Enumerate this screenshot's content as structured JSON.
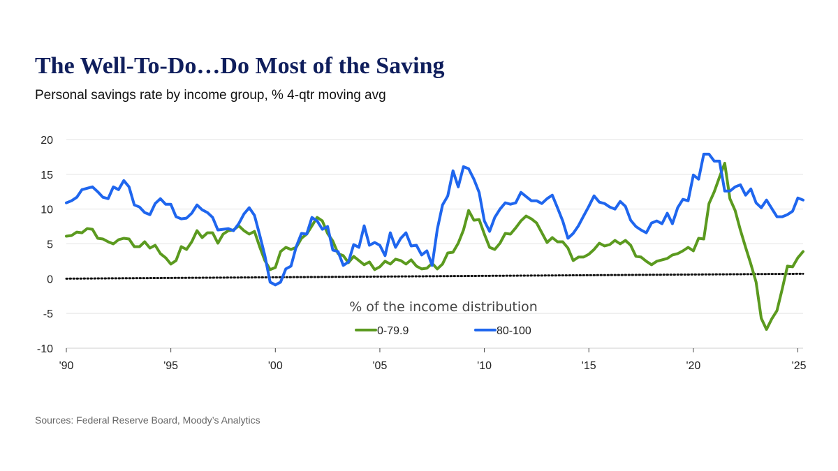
{
  "header": {
    "title": "The Well-To-Do…Do Most of the Saving",
    "subtitle": "Personal savings rate by income group, % 4-qtr moving avg"
  },
  "footer": {
    "source": "Sources: Federal Reserve Board, Moody’s Analytics"
  },
  "chart_data": {
    "type": "line",
    "title": "The Well-To-Do…Do Most of the Saving",
    "subtitle": "Personal savings rate by income group, % 4-qtr moving avg",
    "xlabel": "",
    "ylabel": "",
    "xlim": [
      1990,
      2025.25
    ],
    "ylim": [
      -10,
      20
    ],
    "yticks": [
      20,
      15,
      10,
      5,
      0,
      -5,
      -10
    ],
    "ytick_labels": [
      "20",
      "15",
      "10",
      "5",
      "0",
      "-5",
      "-10"
    ],
    "xticks": [
      1990,
      1995,
      2000,
      2005,
      2010,
      2015,
      2020,
      2025
    ],
    "xtick_labels": [
      "'90",
      "'95",
      "'00",
      "'05",
      "'10",
      "'15",
      "'20",
      "'25"
    ],
    "grid": "horizontal",
    "legend": {
      "title": "% of the income distribution",
      "placement": "bottom-center",
      "entries": [
        "0-79.9",
        "80-100"
      ]
    },
    "reference_line": {
      "label": "",
      "style": "dotted",
      "color": "#111111",
      "points": [
        [
          1990,
          0.0
        ],
        [
          2025.25,
          0.7
        ]
      ]
    },
    "series": [
      {
        "name": "0-79.9",
        "color": "#5b9a1f",
        "points": [
          [
            1990.0,
            6.1
          ],
          [
            1990.25,
            6.2
          ],
          [
            1990.5,
            6.7
          ],
          [
            1990.75,
            6.6
          ],
          [
            1991.0,
            7.2
          ],
          [
            1991.25,
            7.1
          ],
          [
            1991.5,
            5.8
          ],
          [
            1991.75,
            5.7
          ],
          [
            1992.0,
            5.3
          ],
          [
            1992.25,
            5.0
          ],
          [
            1992.5,
            5.6
          ],
          [
            1992.75,
            5.8
          ],
          [
            1993.0,
            5.7
          ],
          [
            1993.25,
            4.6
          ],
          [
            1993.5,
            4.6
          ],
          [
            1993.75,
            5.3
          ],
          [
            1994.0,
            4.4
          ],
          [
            1994.25,
            4.8
          ],
          [
            1994.5,
            3.6
          ],
          [
            1994.75,
            3.0
          ],
          [
            1995.0,
            2.1
          ],
          [
            1995.25,
            2.6
          ],
          [
            1995.5,
            4.6
          ],
          [
            1995.75,
            4.2
          ],
          [
            1996.0,
            5.3
          ],
          [
            1996.25,
            6.9
          ],
          [
            1996.5,
            5.9
          ],
          [
            1996.75,
            6.6
          ],
          [
            1997.0,
            6.6
          ],
          [
            1997.25,
            5.1
          ],
          [
            1997.5,
            6.4
          ],
          [
            1997.75,
            6.9
          ],
          [
            1998.0,
            7.0
          ],
          [
            1998.25,
            7.6
          ],
          [
            1998.5,
            6.9
          ],
          [
            1998.75,
            6.4
          ],
          [
            1999.0,
            6.8
          ],
          [
            1999.25,
            4.6
          ],
          [
            1999.5,
            2.6
          ],
          [
            1999.75,
            1.3
          ],
          [
            2000.0,
            1.6
          ],
          [
            2000.25,
            3.9
          ],
          [
            2000.5,
            4.5
          ],
          [
            2000.75,
            4.2
          ],
          [
            2001.0,
            4.5
          ],
          [
            2001.25,
            5.8
          ],
          [
            2001.5,
            6.4
          ],
          [
            2001.75,
            7.6
          ],
          [
            2002.0,
            8.8
          ],
          [
            2002.25,
            8.3
          ],
          [
            2002.5,
            6.5
          ],
          [
            2002.75,
            5.4
          ],
          [
            2003.0,
            3.6
          ],
          [
            2003.25,
            3.3
          ],
          [
            2003.5,
            2.3
          ],
          [
            2003.75,
            3.2
          ],
          [
            2004.0,
            2.6
          ],
          [
            2004.25,
            2.0
          ],
          [
            2004.5,
            2.4
          ],
          [
            2004.75,
            1.3
          ],
          [
            2005.0,
            1.7
          ],
          [
            2005.25,
            2.5
          ],
          [
            2005.5,
            2.1
          ],
          [
            2005.75,
            2.8
          ],
          [
            2006.0,
            2.6
          ],
          [
            2006.25,
            2.1
          ],
          [
            2006.5,
            2.7
          ],
          [
            2006.75,
            1.8
          ],
          [
            2007.0,
            1.4
          ],
          [
            2007.25,
            1.5
          ],
          [
            2007.5,
            2.2
          ],
          [
            2007.75,
            1.4
          ],
          [
            2008.0,
            2.1
          ],
          [
            2008.25,
            3.7
          ],
          [
            2008.5,
            3.8
          ],
          [
            2008.75,
            5.1
          ],
          [
            2009.0,
            7.0
          ],
          [
            2009.25,
            9.8
          ],
          [
            2009.5,
            8.4
          ],
          [
            2009.75,
            8.5
          ],
          [
            2010.0,
            6.4
          ],
          [
            2010.25,
            4.5
          ],
          [
            2010.5,
            4.2
          ],
          [
            2010.75,
            5.1
          ],
          [
            2011.0,
            6.5
          ],
          [
            2011.25,
            6.4
          ],
          [
            2011.5,
            7.3
          ],
          [
            2011.75,
            8.3
          ],
          [
            2012.0,
            9.0
          ],
          [
            2012.25,
            8.6
          ],
          [
            2012.5,
            8.0
          ],
          [
            2012.75,
            6.6
          ],
          [
            2013.0,
            5.2
          ],
          [
            2013.25,
            5.9
          ],
          [
            2013.5,
            5.3
          ],
          [
            2013.75,
            5.3
          ],
          [
            2014.0,
            4.4
          ],
          [
            2014.25,
            2.6
          ],
          [
            2014.5,
            3.1
          ],
          [
            2014.75,
            3.1
          ],
          [
            2015.0,
            3.5
          ],
          [
            2015.25,
            4.2
          ],
          [
            2015.5,
            5.1
          ],
          [
            2015.75,
            4.7
          ],
          [
            2016.0,
            4.9
          ],
          [
            2016.25,
            5.5
          ],
          [
            2016.5,
            5.0
          ],
          [
            2016.75,
            5.5
          ],
          [
            2017.0,
            4.8
          ],
          [
            2017.25,
            3.2
          ],
          [
            2017.5,
            3.1
          ],
          [
            2017.75,
            2.5
          ],
          [
            2018.0,
            2.0
          ],
          [
            2018.25,
            2.5
          ],
          [
            2018.5,
            2.7
          ],
          [
            2018.75,
            2.9
          ],
          [
            2019.0,
            3.4
          ],
          [
            2019.25,
            3.6
          ],
          [
            2019.5,
            4.0
          ],
          [
            2019.75,
            4.5
          ],
          [
            2020.0,
            4.0
          ],
          [
            2020.25,
            5.8
          ],
          [
            2020.5,
            5.7
          ],
          [
            2020.75,
            10.8
          ],
          [
            2021.0,
            12.5
          ],
          [
            2021.25,
            14.6
          ],
          [
            2021.5,
            16.6
          ],
          [
            2021.75,
            11.5
          ],
          [
            2022.0,
            9.8
          ],
          [
            2022.25,
            7.0
          ],
          [
            2022.5,
            4.5
          ],
          [
            2022.75,
            2.1
          ],
          [
            2023.0,
            -0.5
          ],
          [
            2023.25,
            -5.7
          ],
          [
            2023.5,
            -7.3
          ],
          [
            2023.75,
            -5.8
          ],
          [
            2024.0,
            -4.6
          ],
          [
            2024.25,
            -1.5
          ],
          [
            2024.5,
            1.8
          ],
          [
            2024.75,
            1.7
          ],
          [
            2025.0,
            3.0
          ],
          [
            2025.25,
            3.9
          ]
        ]
      },
      {
        "name": "80-100",
        "color": "#1f66ee",
        "points": [
          [
            1990.0,
            10.9
          ],
          [
            1990.25,
            11.2
          ],
          [
            1990.5,
            11.7
          ],
          [
            1990.75,
            12.8
          ],
          [
            1991.0,
            13.0
          ],
          [
            1991.25,
            13.2
          ],
          [
            1991.5,
            12.5
          ],
          [
            1991.75,
            11.7
          ],
          [
            1992.0,
            11.5
          ],
          [
            1992.25,
            13.2
          ],
          [
            1992.5,
            12.8
          ],
          [
            1992.75,
            14.1
          ],
          [
            1993.0,
            13.2
          ],
          [
            1993.25,
            10.6
          ],
          [
            1993.5,
            10.3
          ],
          [
            1993.75,
            9.5
          ],
          [
            1994.0,
            9.2
          ],
          [
            1994.25,
            10.8
          ],
          [
            1994.5,
            11.5
          ],
          [
            1994.75,
            10.7
          ],
          [
            1995.0,
            10.7
          ],
          [
            1995.25,
            8.9
          ],
          [
            1995.5,
            8.6
          ],
          [
            1995.75,
            8.7
          ],
          [
            1996.0,
            9.4
          ],
          [
            1996.25,
            10.6
          ],
          [
            1996.5,
            9.9
          ],
          [
            1996.75,
            9.5
          ],
          [
            1997.0,
            8.8
          ],
          [
            1997.25,
            7.0
          ],
          [
            1997.5,
            7.1
          ],
          [
            1997.75,
            7.2
          ],
          [
            1998.0,
            6.9
          ],
          [
            1998.25,
            7.9
          ],
          [
            1998.5,
            9.3
          ],
          [
            1998.75,
            10.2
          ],
          [
            1999.0,
            9.1
          ],
          [
            1999.25,
            6.3
          ],
          [
            1999.5,
            3.3
          ],
          [
            1999.75,
            -0.5
          ],
          [
            2000.0,
            -0.9
          ],
          [
            2000.25,
            -0.5
          ],
          [
            2000.5,
            1.4
          ],
          [
            2000.75,
            1.8
          ],
          [
            2001.0,
            4.6
          ],
          [
            2001.25,
            6.5
          ],
          [
            2001.5,
            6.4
          ],
          [
            2001.75,
            8.8
          ],
          [
            2002.0,
            8.3
          ],
          [
            2002.25,
            7.1
          ],
          [
            2002.5,
            7.5
          ],
          [
            2002.75,
            4.1
          ],
          [
            2003.0,
            3.9
          ],
          [
            2003.25,
            1.9
          ],
          [
            2003.5,
            2.4
          ],
          [
            2003.75,
            4.9
          ],
          [
            2004.0,
            4.5
          ],
          [
            2004.25,
            7.6
          ],
          [
            2004.5,
            4.8
          ],
          [
            2004.75,
            5.2
          ],
          [
            2005.0,
            4.8
          ],
          [
            2005.25,
            3.3
          ],
          [
            2005.5,
            6.6
          ],
          [
            2005.75,
            4.5
          ],
          [
            2006.0,
            5.8
          ],
          [
            2006.25,
            6.6
          ],
          [
            2006.5,
            4.7
          ],
          [
            2006.75,
            4.8
          ],
          [
            2007.0,
            3.4
          ],
          [
            2007.25,
            4.0
          ],
          [
            2007.5,
            1.9
          ],
          [
            2007.75,
            7.1
          ],
          [
            2008.0,
            10.6
          ],
          [
            2008.25,
            11.9
          ],
          [
            2008.5,
            15.5
          ],
          [
            2008.75,
            13.2
          ],
          [
            2009.0,
            16.1
          ],
          [
            2009.25,
            15.8
          ],
          [
            2009.5,
            14.3
          ],
          [
            2009.75,
            12.4
          ],
          [
            2010.0,
            8.3
          ],
          [
            2010.25,
            6.8
          ],
          [
            2010.5,
            8.8
          ],
          [
            2010.75,
            10.0
          ],
          [
            2011.0,
            10.9
          ],
          [
            2011.25,
            10.7
          ],
          [
            2011.5,
            10.9
          ],
          [
            2011.75,
            12.4
          ],
          [
            2012.0,
            11.8
          ],
          [
            2012.25,
            11.2
          ],
          [
            2012.5,
            11.2
          ],
          [
            2012.75,
            10.8
          ],
          [
            2013.0,
            11.5
          ],
          [
            2013.25,
            12.0
          ],
          [
            2013.5,
            10.2
          ],
          [
            2013.75,
            8.3
          ],
          [
            2014.0,
            5.8
          ],
          [
            2014.25,
            6.5
          ],
          [
            2014.5,
            7.6
          ],
          [
            2014.75,
            9.0
          ],
          [
            2015.0,
            10.4
          ],
          [
            2015.25,
            11.9
          ],
          [
            2015.5,
            11.0
          ],
          [
            2015.75,
            10.8
          ],
          [
            2016.0,
            10.3
          ],
          [
            2016.25,
            10.0
          ],
          [
            2016.5,
            11.1
          ],
          [
            2016.75,
            10.4
          ],
          [
            2017.0,
            8.4
          ],
          [
            2017.25,
            7.5
          ],
          [
            2017.5,
            7.0
          ],
          [
            2017.75,
            6.6
          ],
          [
            2018.0,
            8.0
          ],
          [
            2018.25,
            8.3
          ],
          [
            2018.5,
            7.9
          ],
          [
            2018.75,
            9.4
          ],
          [
            2019.0,
            7.9
          ],
          [
            2019.25,
            10.2
          ],
          [
            2019.5,
            11.4
          ],
          [
            2019.75,
            11.2
          ],
          [
            2020.0,
            14.9
          ],
          [
            2020.25,
            14.3
          ],
          [
            2020.5,
            17.9
          ],
          [
            2020.75,
            17.9
          ],
          [
            2021.0,
            16.9
          ],
          [
            2021.25,
            16.9
          ],
          [
            2021.5,
            12.6
          ],
          [
            2021.75,
            12.6
          ],
          [
            2022.0,
            13.2
          ],
          [
            2022.25,
            13.5
          ],
          [
            2022.5,
            12.0
          ],
          [
            2022.75,
            12.9
          ],
          [
            2023.0,
            10.9
          ],
          [
            2023.25,
            10.2
          ],
          [
            2023.5,
            11.3
          ],
          [
            2023.75,
            10.1
          ],
          [
            2024.0,
            8.9
          ],
          [
            2024.25,
            8.9
          ],
          [
            2024.5,
            9.2
          ],
          [
            2024.75,
            9.7
          ],
          [
            2025.0,
            11.6
          ],
          [
            2025.25,
            11.3
          ]
        ]
      }
    ]
  }
}
